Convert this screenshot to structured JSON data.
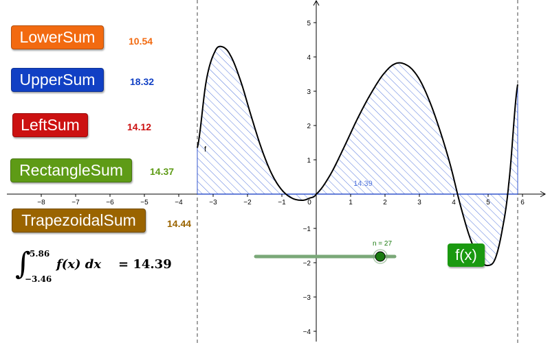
{
  "buttons": [
    {
      "id": "lower",
      "label": "LowerSum",
      "value": "10.54",
      "color": "#f26a10",
      "value_color": "#f26a10"
    },
    {
      "id": "upper",
      "label": "UpperSum",
      "value": "18.32",
      "color": "#1140c4",
      "value_color": "#1140c4"
    },
    {
      "id": "left",
      "label": "LeftSum",
      "value": "14.12",
      "color": "#cc1111",
      "value_color": "#cc1111"
    },
    {
      "id": "rectangle",
      "label": "RectangleSum",
      "value": "14.37",
      "color": "#5e9b16",
      "value_color": "#5e9b16"
    },
    {
      "id": "trapezoidal",
      "label": "TrapezoidalSum",
      "value": "14.44",
      "color": "#9a6400",
      "value_color": "#9a6400"
    }
  ],
  "integral": {
    "upper": "5.86",
    "lower": "−3.46",
    "expression": "f(x) dx",
    "equals": "= 14.39"
  },
  "graph": {
    "x_ticks": [
      "−8",
      "−7",
      "−6",
      "−5",
      "−4",
      "−3",
      "−2",
      "−1",
      "0",
      "1",
      "2",
      "3",
      "4",
      "5",
      "6"
    ],
    "y_ticks": [
      "5",
      "4",
      "3",
      "2",
      "1",
      "−1",
      "−2",
      "−3",
      "−4"
    ],
    "function_label": "f",
    "area_label": "14.39",
    "a": -3.46,
    "b": 5.86,
    "colors": {
      "curve": "#000000",
      "hatch": "#3355cc",
      "axis": "#000000",
      "grid_bg": "#ffffff"
    }
  },
  "slider": {
    "label": "n = 27",
    "value": 27,
    "min": 1,
    "max": 30,
    "color": "#1a7a10"
  },
  "fx_button": {
    "label": "f(x)",
    "color": "#1a9910"
  }
}
